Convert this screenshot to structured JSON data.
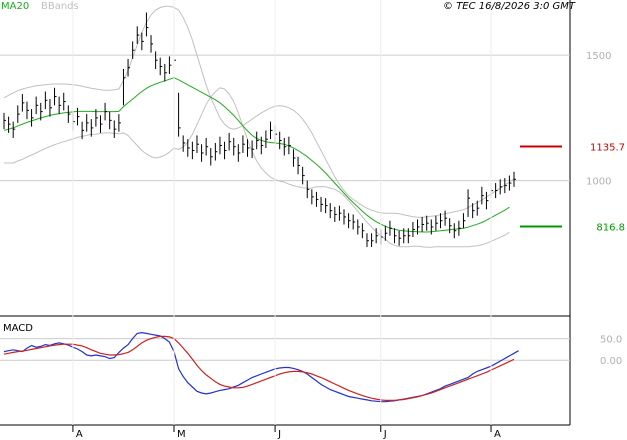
{
  "legend": {
    "ma_label": "MA20",
    "bb_label": "BBands"
  },
  "copyright": "© TEC 16/8/2026 3:0 GMT",
  "macd_label": "MACD",
  "colors": {
    "ma": "#22aa22",
    "bbands": "#c0c0c0",
    "price": "#000000",
    "macd_line": "#2233cc",
    "signal_line": "#cc2222",
    "resistance": "#cc0000",
    "support": "#009900",
    "grid": "#cccccc",
    "tick_text": "#b0b0b0"
  },
  "chart_data": [
    {
      "type": "ohlc",
      "y_ticks": [
        {
          "value": 1500,
          "label": "1500"
        },
        {
          "value": 1000,
          "label": "1000"
        }
      ],
      "ylim": [
        460,
        1720
      ],
      "x_labels": [
        {
          "index": 15,
          "label": "A"
        },
        {
          "index": 37,
          "label": "M"
        },
        {
          "index": 59,
          "label": "J"
        },
        {
          "index": 82,
          "label": "J"
        },
        {
          "index": 106,
          "label": "A"
        }
      ],
      "levels": [
        {
          "name": "resistance",
          "value": 1135.7,
          "label": "1135.7"
        },
        {
          "name": "support",
          "value": 816.8,
          "label": "816.8"
        }
      ],
      "close": [
        1240,
        1225,
        1205,
        1265,
        1310,
        1280,
        1250,
        1300,
        1275,
        1320,
        1290,
        1335,
        1300,
        1315,
        1265,
        1235,
        1255,
        1200,
        1230,
        1210,
        1250,
        1225,
        1275,
        1240,
        1205,
        1230,
        1410,
        1450,
        1520,
        1580,
        1555,
        1610,
        1545,
        1480,
        1455,
        1430,
        1460,
        1480,
        1210,
        1150,
        1130,
        1120,
        1145,
        1110,
        1135,
        1095,
        1115,
        1140,
        1120,
        1155,
        1135,
        1110,
        1145,
        1130,
        1125,
        1160,
        1140,
        1165,
        1200,
        1185,
        1160,
        1135,
        1140,
        1090,
        1060,
        1020,
        965,
        935,
        925,
        905,
        900,
        880,
        865,
        870,
        855,
        840,
        835,
        815,
        800,
        760,
        760,
        780,
        775,
        790,
        810,
        780,
        770,
        780,
        780,
        805,
        815,
        825,
        830,
        815,
        830,
        840,
        850,
        820,
        800,
        810,
        840,
        930,
        880,
        890,
        940,
        920,
        960,
        960,
        975,
        980,
        990,
        1005
      ],
      "high": [
        1270,
        1255,
        1235,
        1300,
        1345,
        1315,
        1285,
        1335,
        1310,
        1355,
        1325,
        1370,
        1335,
        1350,
        1300,
        1270,
        1290,
        1235,
        1265,
        1245,
        1285,
        1260,
        1310,
        1275,
        1240,
        1265,
        1445,
        1485,
        1555,
        1615,
        1590,
        1670,
        1580,
        1515,
        1490,
        1465,
        1495,
        1515,
        1350,
        1180,
        1165,
        1155,
        1180,
        1145,
        1170,
        1130,
        1150,
        1175,
        1155,
        1190,
        1170,
        1145,
        1180,
        1165,
        1160,
        1195,
        1175,
        1200,
        1235,
        1220,
        1195,
        1170,
        1175,
        1125,
        1095,
        1055,
        1000,
        965,
        955,
        935,
        930,
        910,
        895,
        900,
        885,
        870,
        865,
        845,
        830,
        790,
        790,
        810,
        805,
        820,
        840,
        810,
        800,
        810,
        810,
        835,
        845,
        855,
        860,
        845,
        860,
        870,
        880,
        850,
        830,
        840,
        870,
        965,
        910,
        920,
        975,
        955,
        990,
        990,
        1005,
        1010,
        1020,
        1035
      ],
      "low": [
        1205,
        1190,
        1170,
        1230,
        1275,
        1245,
        1215,
        1265,
        1240,
        1285,
        1255,
        1300,
        1265,
        1280,
        1230,
        1200,
        1220,
        1165,
        1195,
        1175,
        1215,
        1190,
        1240,
        1205,
        1170,
        1195,
        1300,
        1415,
        1485,
        1545,
        1520,
        1575,
        1510,
        1445,
        1420,
        1395,
        1425,
        1445,
        1175,
        1115,
        1095,
        1085,
        1110,
        1075,
        1100,
        1060,
        1080,
        1105,
        1085,
        1120,
        1100,
        1075,
        1110,
        1095,
        1090,
        1125,
        1105,
        1130,
        1165,
        1150,
        1125,
        1100,
        1105,
        1055,
        1025,
        985,
        930,
        905,
        895,
        875,
        870,
        850,
        835,
        840,
        825,
        810,
        805,
        785,
        770,
        735,
        735,
        750,
        745,
        760,
        780,
        750,
        740,
        750,
        750,
        775,
        785,
        795,
        800,
        785,
        800,
        810,
        820,
        790,
        770,
        780,
        810,
        855,
        850,
        860,
        905,
        885,
        930,
        930,
        945,
        950,
        960,
        975
      ],
      "ma20": [
        1200,
        1205,
        1210,
        1218,
        1225,
        1232,
        1238,
        1244,
        1250,
        1255,
        1260,
        1264,
        1267,
        1270,
        1272,
        1274,
        1276,
        1276,
        1276,
        1276,
        1275,
        1275,
        1275,
        1275,
        1275,
        1276,
        1295,
        1310,
        1325,
        1340,
        1355,
        1368,
        1378,
        1385,
        1392,
        1398,
        1404,
        1410,
        1402,
        1392,
        1382,
        1372,
        1362,
        1352,
        1342,
        1332,
        1322,
        1310,
        1295,
        1278,
        1260,
        1240,
        1218,
        1198,
        1180,
        1168,
        1160,
        1155,
        1152,
        1150,
        1148,
        1145,
        1138,
        1130,
        1120,
        1108,
        1095,
        1080,
        1065,
        1048,
        1030,
        1010,
        990,
        970,
        950,
        930,
        912,
        895,
        878,
        862,
        848,
        836,
        826,
        818,
        810,
        806,
        802,
        800,
        798,
        797,
        796,
        795,
        795,
        796,
        798,
        800,
        802,
        804,
        806,
        808,
        810,
        814,
        820,
        826,
        833,
        842,
        852,
        862,
        872,
        882,
        894
      ],
      "bb_upper": [
        1330,
        1340,
        1350,
        1358,
        1365,
        1370,
        1374,
        1378,
        1380,
        1382,
        1384,
        1385,
        1385,
        1385,
        1384,
        1382,
        1380,
        1376,
        1372,
        1368,
        1365,
        1362,
        1360,
        1360,
        1362,
        1365,
        1400,
        1440,
        1490,
        1540,
        1590,
        1630,
        1660,
        1680,
        1690,
        1695,
        1695,
        1690,
        1680,
        1650,
        1610,
        1560,
        1500,
        1440,
        1380,
        1330,
        1290,
        1250,
        1225,
        1210,
        1205,
        1210,
        1220,
        1232,
        1245,
        1258,
        1270,
        1280,
        1290,
        1296,
        1298,
        1296,
        1290,
        1280,
        1265,
        1245,
        1220,
        1190,
        1155,
        1120,
        1085,
        1050,
        1015,
        985,
        960,
        940,
        925,
        912,
        900,
        890,
        882,
        876,
        872,
        870,
        870,
        870,
        868,
        864,
        860,
        856,
        854,
        854,
        856,
        858,
        860,
        864,
        868,
        872,
        876,
        880,
        884,
        892,
        902,
        912,
        922,
        934,
        946,
        958,
        970,
        982,
        994,
        1008
      ],
      "bb_lower": [
        1070,
        1070,
        1070,
        1078,
        1085,
        1094,
        1102,
        1110,
        1120,
        1128,
        1136,
        1143,
        1149,
        1155,
        1160,
        1166,
        1172,
        1176,
        1180,
        1184,
        1185,
        1188,
        1190,
        1190,
        1188,
        1187,
        1190,
        1180,
        1160,
        1140,
        1120,
        1106,
        1096,
        1090,
        1094,
        1101,
        1113,
        1130,
        1124,
        1134,
        1154,
        1184,
        1224,
        1264,
        1304,
        1334,
        1354,
        1370,
        1365,
        1346,
        1315,
        1270,
        1216,
        1164,
        1115,
        1078,
        1050,
        1030,
        1014,
        1004,
        998,
        994,
        986,
        980,
        975,
        971,
        970,
        970,
        975,
        976,
        975,
        970,
        965,
        955,
        940,
        920,
        899,
        878,
        856,
        834,
        814,
        796,
        780,
        766,
        750,
        742,
        736,
        736,
        736,
        738,
        738,
        736,
        734,
        734,
        736,
        736,
        736,
        736,
        736,
        736,
        736,
        736,
        738,
        740,
        744,
        750,
        758,
        766,
        774,
        782,
        794
      ]
    },
    {
      "type": "line",
      "title": "MACD",
      "y_ticks": [
        {
          "value": 50,
          "label": "50.0"
        },
        {
          "value": 0,
          "label": "0.00"
        }
      ],
      "ylim": [
        -150,
        100
      ],
      "series": [
        {
          "name": "macd",
          "values": [
            20,
            22,
            24,
            22,
            20,
            28,
            34,
            30,
            32,
            36,
            34,
            38,
            40,
            38,
            35,
            30,
            26,
            20,
            12,
            10,
            12,
            10,
            8,
            4,
            6,
            18,
            28,
            36,
            50,
            62,
            64,
            62,
            60,
            58,
            56,
            50,
            42,
            20,
            -20,
            -38,
            -52,
            -62,
            -72,
            -76,
            -78,
            -76,
            -73,
            -70,
            -68,
            -66,
            -62,
            -58,
            -52,
            -46,
            -40,
            -36,
            -32,
            -28,
            -24,
            -20,
            -18,
            -17,
            -17,
            -19,
            -22,
            -26,
            -32,
            -40,
            -48,
            -56,
            -62,
            -68,
            -72,
            -76,
            -80,
            -84,
            -86,
            -88,
            -90,
            -92,
            -94,
            -95,
            -96,
            -96,
            -95,
            -94,
            -92,
            -90,
            -88,
            -86,
            -84,
            -82,
            -78,
            -74,
            -70,
            -66,
            -60,
            -56,
            -52,
            -48,
            -44,
            -40,
            -32,
            -26,
            -22,
            -18,
            -14,
            -8,
            -2,
            4,
            10,
            16,
            22
          ]
        },
        {
          "name": "signal",
          "values": [
            14,
            16,
            18,
            20,
            21,
            23,
            25,
            27,
            29,
            31,
            33,
            35,
            36,
            37,
            37,
            37,
            35,
            33,
            29,
            24,
            20,
            16,
            14,
            12,
            12,
            13,
            15,
            18,
            24,
            32,
            40,
            46,
            50,
            53,
            55,
            55,
            54,
            50,
            40,
            28,
            16,
            2,
            -12,
            -24,
            -34,
            -42,
            -50,
            -56,
            -60,
            -62,
            -64,
            -64,
            -63,
            -60,
            -56,
            -52,
            -48,
            -44,
            -40,
            -36,
            -32,
            -29,
            -27,
            -26,
            -26,
            -27,
            -29,
            -32,
            -36,
            -40,
            -45,
            -50,
            -55,
            -60,
            -65,
            -70,
            -74,
            -78,
            -82,
            -85,
            -88,
            -90,
            -92,
            -93,
            -93,
            -93,
            -92,
            -91,
            -89,
            -87,
            -85,
            -82,
            -79,
            -76,
            -72,
            -68,
            -64,
            -60,
            -56,
            -52,
            -48,
            -44,
            -40,
            -36,
            -32,
            -28,
            -23,
            -18,
            -13,
            -8,
            -3,
            2
          ]
        }
      ]
    }
  ]
}
